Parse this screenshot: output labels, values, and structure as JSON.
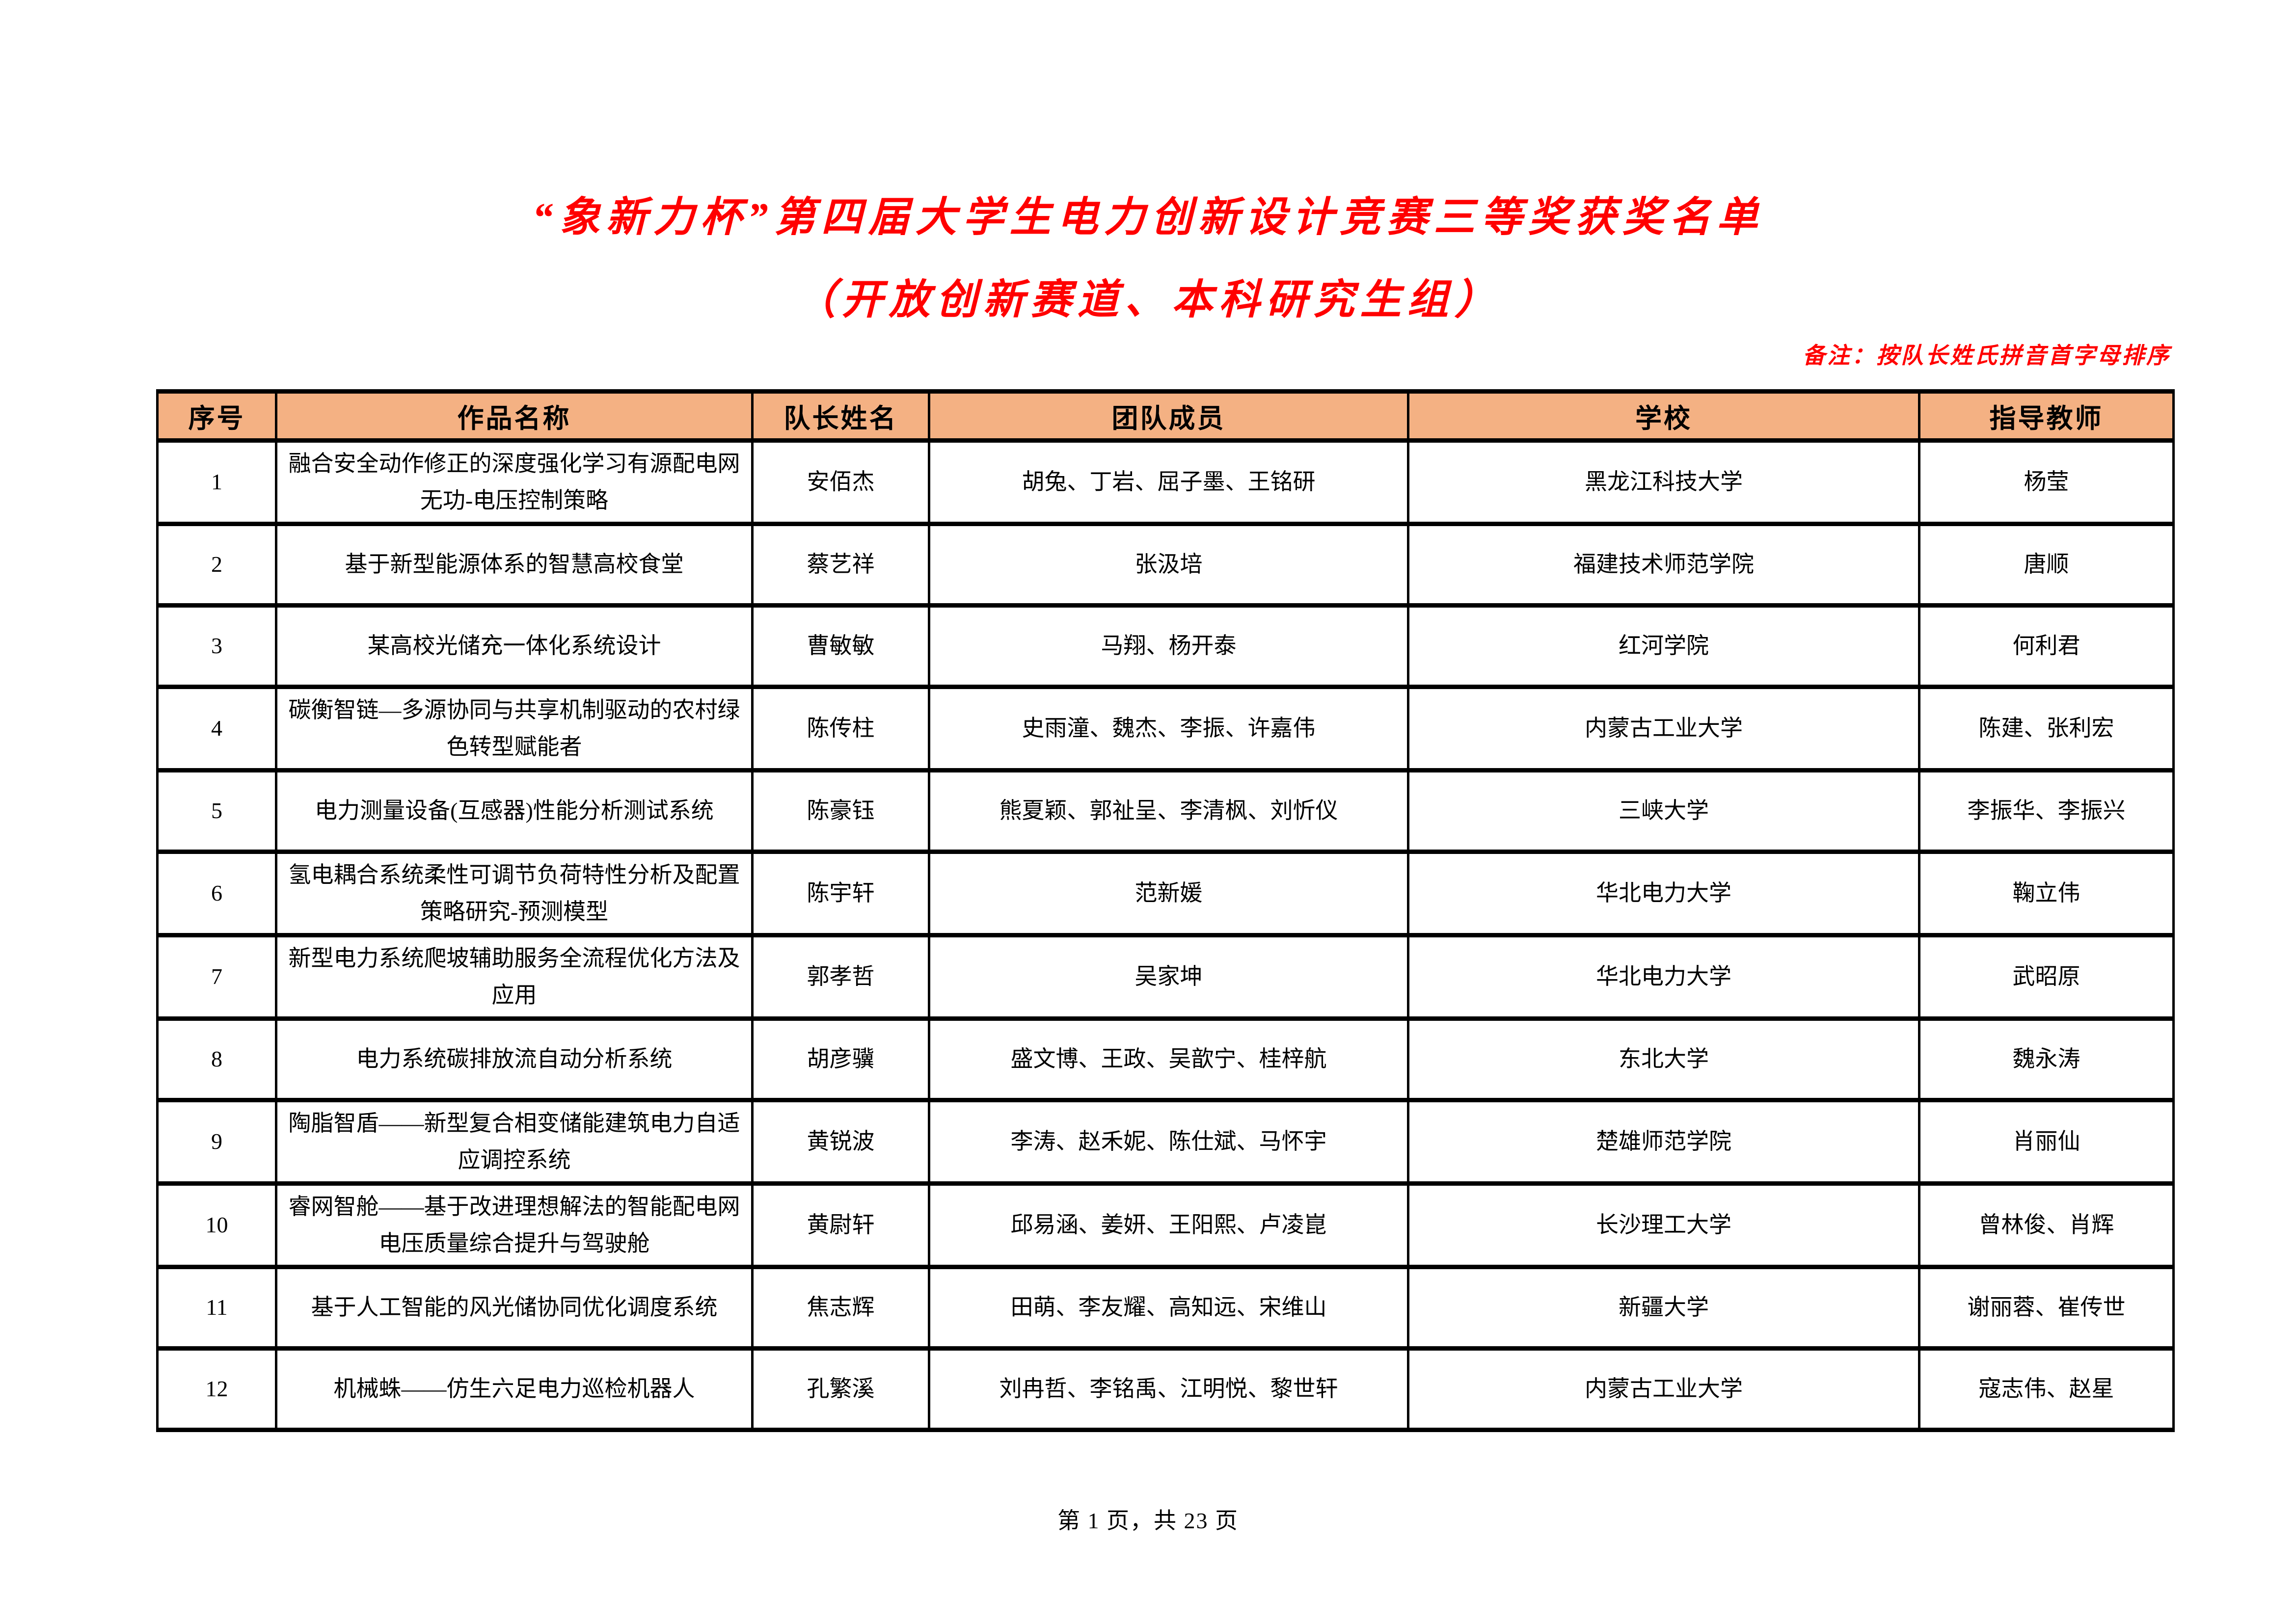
{
  "title": {
    "line1": "“象新力杯”第四届大学生电力创新设计竞赛三等奖获奖名单",
    "line2": "（开放创新赛道、本科研究生组）"
  },
  "note": "备注：按队长姓氏拼音首字母排序",
  "table": {
    "headers": [
      "序号",
      "作品名称",
      "队长姓名",
      "团队成员",
      "学校",
      "指导教师"
    ],
    "rows": [
      {
        "no": "1",
        "work_title": "融合安全动作修正的深度强化学习有源配电网无功-电压控制策略",
        "leader": "安佰杰",
        "members": "胡兔、丁岩、屈子墨、王铭研",
        "school": "黑龙江科技大学",
        "advisors": "杨莹"
      },
      {
        "no": "2",
        "work_title": "基于新型能源体系的智慧高校食堂",
        "leader": "蔡艺祥",
        "members": "张汲培",
        "school": "福建技术师范学院",
        "advisors": "唐顺"
      },
      {
        "no": "3",
        "work_title": "某高校光储充一体化系统设计",
        "leader": "曹敏敏",
        "members": "马翔、杨开泰",
        "school": "红河学院",
        "advisors": "何利君"
      },
      {
        "no": "4",
        "work_title": "碳衡智链—多源协同与共享机制驱动的农村绿色转型赋能者",
        "leader": "陈传柱",
        "members": "史雨潼、魏杰、李振、许嘉伟",
        "school": "内蒙古工业大学",
        "advisors": "陈建、张利宏"
      },
      {
        "no": "5",
        "work_title": "电力测量设备(互感器)性能分析测试系统",
        "leader": "陈豪钰",
        "members": "熊夏颖、郭祉呈、李清枫、刘忻仪",
        "school": "三峡大学",
        "advisors": "李振华、李振兴"
      },
      {
        "no": "6",
        "work_title": "氢电耦合系统柔性可调节负荷特性分析及配置策略研究-预测模型",
        "leader": "陈宇轩",
        "members": "范新媛",
        "school": "华北电力大学",
        "advisors": "鞠立伟"
      },
      {
        "no": "7",
        "work_title": "新型电力系统爬坡辅助服务全流程优化方法及应用",
        "leader": "郭孝哲",
        "members": "吴家坤",
        "school": "华北电力大学",
        "advisors": "武昭原"
      },
      {
        "no": "8",
        "work_title": "电力系统碳排放流自动分析系统",
        "leader": "胡彦骥",
        "members": "盛文博、王政、吴歆宁、桂梓航",
        "school": "东北大学",
        "advisors": "魏永涛"
      },
      {
        "no": "9",
        "work_title": "陶脂智盾——新型复合相变储能建筑电力自适应调控系统",
        "leader": "黄锐波",
        "members": "李涛、赵禾妮、陈仕斌、马怀宇",
        "school": "楚雄师范学院",
        "advisors": "肖丽仙"
      },
      {
        "no": "10",
        "work_title": "睿网智舱——基于改进理想解法的智能配电网电压质量综合提升与驾驶舱",
        "leader": "黄尉轩",
        "members": "邱易涵、姜妍、王阳熙、卢凌崑",
        "school": "长沙理工大学",
        "advisors": "曾林俊、肖辉"
      },
      {
        "no": "11",
        "work_title": "基于人工智能的风光储协同优化调度系统",
        "leader": "焦志辉",
        "members": "田萌、李友耀、高知远、宋维山",
        "school": "新疆大学",
        "advisors": "谢丽蓉、崔传世"
      },
      {
        "no": "12",
        "work_title": "机械蛛——仿生六足电力巡检机器人",
        "leader": "孔繁溪",
        "members": "刘冉哲、李铭禹、江明悦、黎世轩",
        "school": "内蒙古工业大学",
        "advisors": "寇志伟、赵星"
      }
    ]
  },
  "footer": {
    "page_text": "第 1 页，共 23 页"
  },
  "colors": {
    "title_red": "#FF0000",
    "note_red": "#FF0000",
    "header_bg": "#F4B183",
    "border": "#000000"
  }
}
